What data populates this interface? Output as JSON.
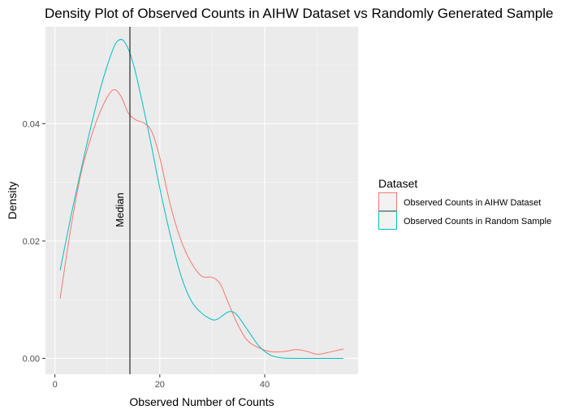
{
  "chart_data": {
    "type": "line",
    "title": "Density Plot of Observed Counts in AIHW Dataset vs Randomly Generated Sample",
    "xlabel": "Observed Number of Counts",
    "ylabel": "Density",
    "xlim": [
      -1.8,
      57.8
    ],
    "ylim": [
      -0.0027,
      0.0565
    ],
    "x_ticks": [
      0,
      20,
      40
    ],
    "x_tick_labels": [
      "0",
      "20",
      "40"
    ],
    "y_ticks": [
      0.0,
      0.02,
      0.04
    ],
    "y_tick_labels": [
      "0.00",
      "0.02",
      "0.04"
    ],
    "grid": true,
    "legend": {
      "title": "Dataset",
      "position": "right"
    },
    "annotation": {
      "text": "Median",
      "x": 14.3
    },
    "series": [
      {
        "name": "Observed Counts in AIHW Dataset",
        "color": "#F8766D",
        "x": [
          1,
          3,
          5,
          7,
          9,
          11,
          12.5,
          14,
          15.5,
          17,
          18.5,
          20,
          22,
          24,
          26,
          28,
          30,
          31.5,
          33,
          35,
          37,
          40,
          42,
          44,
          46,
          48,
          50,
          52,
          54,
          55
        ],
        "y": [
          0.0102,
          0.022,
          0.0316,
          0.038,
          0.0428,
          0.0457,
          0.0448,
          0.0418,
          0.0406,
          0.0401,
          0.0386,
          0.0342,
          0.0262,
          0.0202,
          0.0163,
          0.014,
          0.0138,
          0.0127,
          0.0096,
          0.0055,
          0.0028,
          0.0014,
          0.0011,
          0.0012,
          0.0015,
          0.0012,
          0.0007,
          0.001,
          0.0014,
          0.0016
        ]
      },
      {
        "name": "Observed Counts in Random Sample",
        "color": "#00BFC4",
        "x": [
          1,
          3,
          5,
          7,
          9,
          11,
          12,
          13,
          14,
          15,
          16,
          18,
          20,
          22,
          24,
          26,
          28,
          30,
          31,
          32,
          33,
          34,
          35,
          37,
          39,
          41,
          43,
          46,
          50,
          55
        ],
        "y": [
          0.015,
          0.024,
          0.0322,
          0.04,
          0.047,
          0.0525,
          0.0541,
          0.0542,
          0.0527,
          0.05,
          0.0463,
          0.038,
          0.029,
          0.021,
          0.0142,
          0.0098,
          0.0077,
          0.0066,
          0.0067,
          0.0073,
          0.0079,
          0.0079,
          0.0071,
          0.0045,
          0.002,
          0.0006,
          0.0001,
          0.0,
          0.0,
          0.0
        ]
      }
    ]
  }
}
